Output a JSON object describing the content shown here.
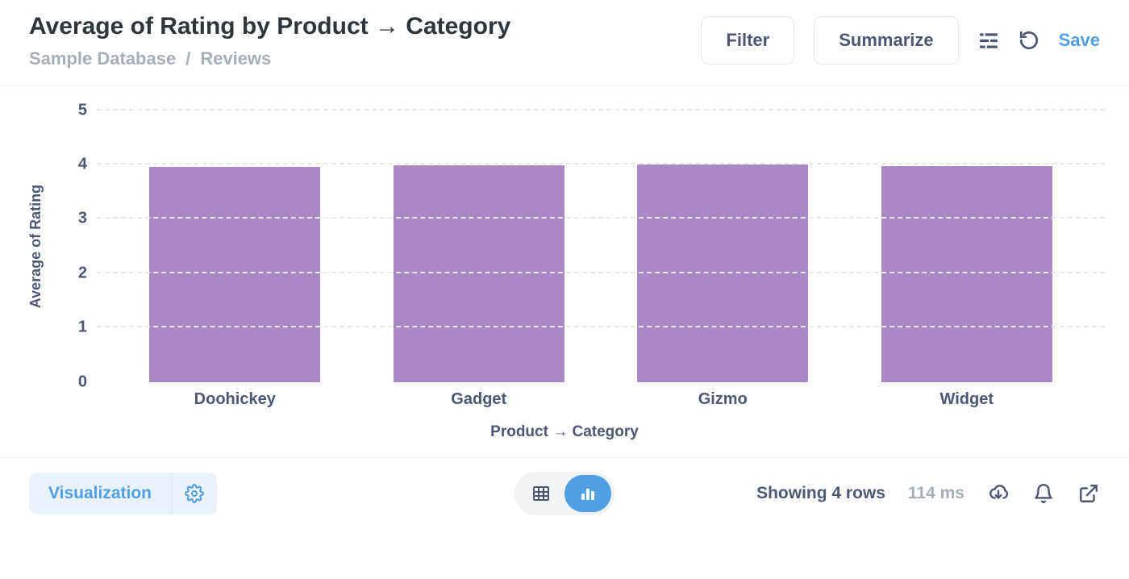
{
  "header": {
    "title": "Average of Rating by Product → Category",
    "breadcrumb": {
      "database": "Sample Database",
      "table": "Reviews"
    },
    "filter_label": "Filter",
    "summarize_label": "Summarize",
    "save_label": "Save"
  },
  "chart": {
    "type": "bar",
    "y_axis_label": "Average of Rating",
    "x_axis_label": "Product → Category",
    "ylim": [
      0,
      5
    ],
    "ytick_step": 1,
    "categories": [
      "Doohickey",
      "Gadget",
      "Gizmo",
      "Widget"
    ],
    "values": [
      3.95,
      3.98,
      4.0,
      3.97
    ],
    "bar_color": "#a989c5",
    "grid_color": "#e6e8ea",
    "background_color": "#ffffff",
    "label_fontsize": 18,
    "tick_fontsize": 20
  },
  "footer": {
    "visualization_label": "Visualization",
    "rows_text": "Showing 4 rows",
    "timing_text": "114 ms"
  }
}
